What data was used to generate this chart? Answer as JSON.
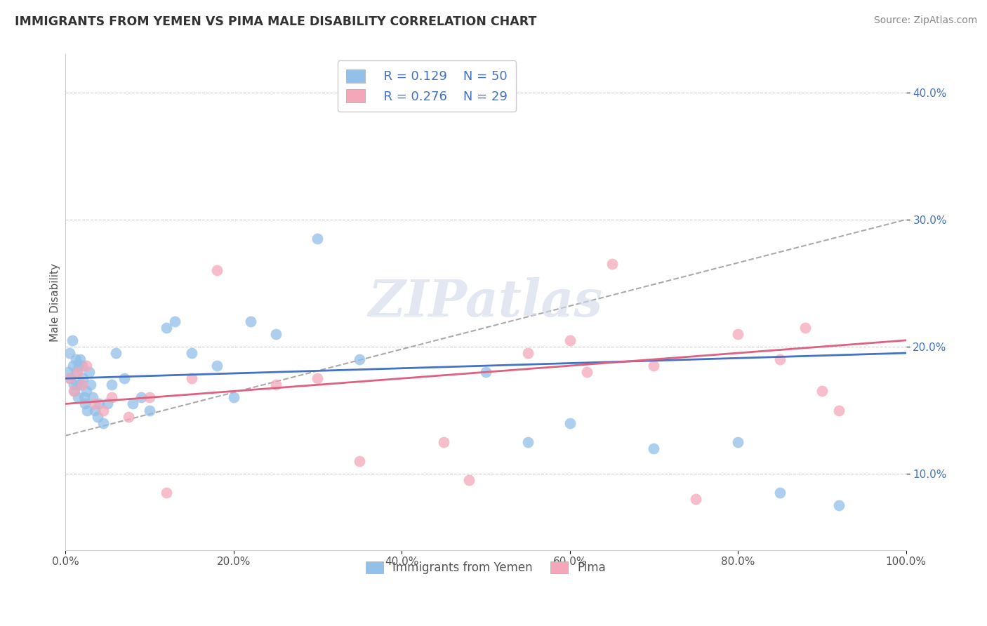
{
  "title": "IMMIGRANTS FROM YEMEN VS PIMA MALE DISABILITY CORRELATION CHART",
  "source": "Source: ZipAtlas.com",
  "ylabel": "Male Disability",
  "xlim": [
    0.0,
    100.0
  ],
  "ylim": [
    4.0,
    43.0
  ],
  "xticks": [
    0.0,
    20.0,
    40.0,
    60.0,
    80.0,
    100.0
  ],
  "yticks": [
    10.0,
    20.0,
    30.0,
    40.0
  ],
  "blue_color": "#92c0e8",
  "pink_color": "#f4a7b9",
  "blue_line_color": "#4472c4",
  "pink_line_color": "#e06080",
  "dash_line_color": "#aaaaaa",
  "watermark": "ZIPatlas",
  "legend_R1": "R = 0.129",
  "legend_N1": "N = 50",
  "legend_R2": "R = 0.276",
  "legend_N2": "N = 29",
  "legend_label1": "Immigrants from Yemen",
  "legend_label2": "Pima",
  "blue_scatter_x": [
    0.3,
    0.5,
    0.6,
    0.8,
    0.9,
    1.0,
    1.1,
    1.2,
    1.3,
    1.4,
    1.5,
    1.6,
    1.7,
    1.8,
    2.0,
    2.1,
    2.2,
    2.3,
    2.5,
    2.6,
    2.8,
    3.0,
    3.2,
    3.5,
    3.8,
    4.0,
    4.5,
    5.0,
    5.5,
    6.0,
    7.0,
    8.0,
    9.0,
    10.0,
    12.0,
    13.0,
    15.0,
    18.0,
    20.0,
    22.0,
    25.0,
    30.0,
    35.0,
    50.0,
    55.0,
    60.0,
    70.0,
    80.0,
    85.0,
    92.0
  ],
  "blue_scatter_y": [
    18.0,
    19.5,
    17.5,
    20.5,
    18.5,
    17.0,
    16.5,
    19.0,
    18.0,
    17.0,
    16.0,
    18.5,
    19.0,
    17.0,
    18.5,
    17.5,
    16.0,
    15.5,
    16.5,
    15.0,
    18.0,
    17.0,
    16.0,
    15.0,
    14.5,
    15.5,
    14.0,
    15.5,
    17.0,
    19.5,
    17.5,
    15.5,
    16.0,
    15.0,
    21.5,
    22.0,
    19.5,
    18.5,
    16.0,
    22.0,
    21.0,
    28.5,
    19.0,
    18.0,
    12.5,
    14.0,
    12.0,
    12.5,
    8.5,
    7.5
  ],
  "pink_scatter_x": [
    0.5,
    1.0,
    1.5,
    2.0,
    2.5,
    3.5,
    4.5,
    5.5,
    7.5,
    10.0,
    12.0,
    15.0,
    18.0,
    25.0,
    35.0,
    45.0,
    55.0,
    60.0,
    65.0,
    70.0,
    75.0,
    80.0,
    85.0,
    88.0,
    90.0,
    92.0,
    62.0,
    48.0,
    30.0
  ],
  "pink_scatter_y": [
    17.5,
    16.5,
    18.0,
    17.0,
    18.5,
    15.5,
    15.0,
    16.0,
    14.5,
    16.0,
    8.5,
    17.5,
    26.0,
    17.0,
    11.0,
    12.5,
    19.5,
    20.5,
    26.5,
    18.5,
    8.0,
    21.0,
    19.0,
    21.5,
    16.5,
    15.0,
    18.0,
    9.5,
    17.5
  ]
}
